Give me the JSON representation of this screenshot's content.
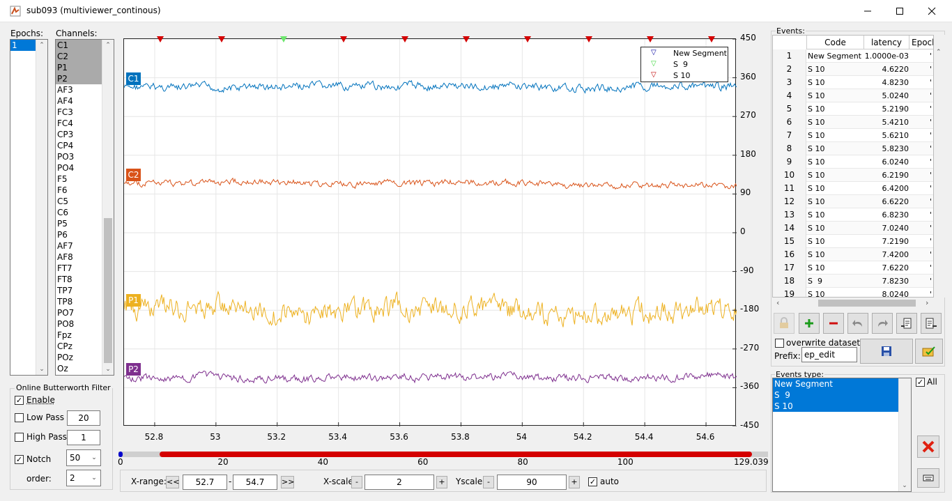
{
  "window": {
    "title": "sub093 (multiviewer_continous)"
  },
  "epochs": {
    "label": "Epochs:",
    "items": [
      "1"
    ],
    "selected": 0
  },
  "channels": {
    "label": "Channels:",
    "items": [
      "C1",
      "C2",
      "P1",
      "P2",
      "AF3",
      "AF4",
      "FC3",
      "FC4",
      "CP3",
      "CP4",
      "PO3",
      "PO4",
      "F5",
      "F6",
      "C5",
      "C6",
      "P5",
      "P6",
      "AF7",
      "AF8",
      "FT7",
      "FT8",
      "TP7",
      "TP8",
      "PO7",
      "PO8",
      "Fpz",
      "CPz",
      "POz",
      "Oz"
    ],
    "selected": [
      "C1",
      "C2",
      "P1",
      "P2"
    ]
  },
  "filter": {
    "group_title": "Online Butterworth Filter",
    "enable_label": "Enable",
    "enable_checked": true,
    "low_pass_label": "Low Pass",
    "low_pass_value": "20",
    "low_pass_checked": false,
    "high_pass_label": "High Pass",
    "high_pass_value": "1",
    "high_pass_checked": false,
    "notch_label": "Notch",
    "notch_value": "50",
    "notch_checked": true,
    "order_label": "order:",
    "order_value": "2"
  },
  "chart_data": {
    "type": "line",
    "xlim": [
      52.7,
      54.7
    ],
    "ylim": [
      -450,
      450
    ],
    "x_ticks": [
      "52.8",
      "53",
      "53.2",
      "53.4",
      "53.6",
      "53.8",
      "54",
      "54.2",
      "54.4",
      "54.6"
    ],
    "y_ticks": [
      "450",
      "360",
      "270",
      "180",
      "90",
      "0",
      "-90",
      "-180",
      "-270",
      "-360",
      "-450"
    ],
    "grid": true,
    "series": [
      {
        "name": "C1",
        "color": "#0072bd",
        "offset": 337,
        "amplitude": 5
      },
      {
        "name": "C2",
        "color": "#d95319",
        "offset": 113,
        "amplitude": 4
      },
      {
        "name": "P1",
        "color": "#edb120",
        "offset": -178,
        "amplitude": 14
      },
      {
        "name": "P2",
        "color": "#7e2f8e",
        "offset": -338,
        "amplitude": 5
      }
    ],
    "event_markers": [
      {
        "t": 52.82,
        "type": "S 10"
      },
      {
        "t": 53.02,
        "type": "S 10"
      },
      {
        "t": 53.223,
        "type": "S  9"
      },
      {
        "t": 53.42,
        "type": "S 10"
      },
      {
        "t": 53.62,
        "type": "S 10"
      },
      {
        "t": 53.82,
        "type": "S 10"
      },
      {
        "t": 54.02,
        "type": "S 10"
      },
      {
        "t": 54.22,
        "type": "S 10"
      },
      {
        "t": 54.42,
        "type": "S 10"
      },
      {
        "t": 54.62,
        "type": "S 10"
      }
    ],
    "legend": {
      "position": "top-right",
      "entries": [
        {
          "label": "New Segment",
          "color": "#0000a0"
        },
        {
          "label": "S  9",
          "color": "#3cd83c"
        },
        {
          "label": "S 10",
          "color": "#c00000"
        }
      ]
    }
  },
  "overview": {
    "ticks": [
      "0",
      "20",
      "40",
      "60",
      "80",
      "100",
      "129.039"
    ],
    "max": 129.039,
    "window_start": 52.7,
    "window_end": 54.7,
    "events_span": [
      4.622,
      125.8
    ]
  },
  "controls": {
    "xrange_label": "X-range:",
    "prev": "<<",
    "next": ">>",
    "xmin": "52.7",
    "xmax": "54.7",
    "dash": "-",
    "xscale_label": "X-scale",
    "xscale_value": "2",
    "yscale_label": "Yscale",
    "yscale_value": "90",
    "minus": "-",
    "plus": "+",
    "auto_label": "auto",
    "auto_checked": true
  },
  "events": {
    "label": "Events:",
    "columns": [
      "Code",
      "latency",
      "Epoch"
    ],
    "rows": [
      [
        "1",
        "New Segment",
        "1.0000e-03"
      ],
      [
        "2",
        "S 10",
        "4.6220"
      ],
      [
        "3",
        "S 10",
        "4.8230"
      ],
      [
        "4",
        "S 10",
        "5.0240"
      ],
      [
        "5",
        "S 10",
        "5.2190"
      ],
      [
        "6",
        "S 10",
        "5.4210"
      ],
      [
        "7",
        "S 10",
        "5.6210"
      ],
      [
        "8",
        "S 10",
        "5.8230"
      ],
      [
        "9",
        "S 10",
        "6.0240"
      ],
      [
        "10",
        "S 10",
        "6.2190"
      ],
      [
        "11",
        "S 10",
        "6.4200"
      ],
      [
        "12",
        "S 10",
        "6.6220"
      ],
      [
        "13",
        "S 10",
        "6.8230"
      ],
      [
        "14",
        "S 10",
        "7.0240"
      ],
      [
        "15",
        "S 10",
        "7.2190"
      ],
      [
        "16",
        "S 10",
        "7.4200"
      ],
      [
        "17",
        "S 10",
        "7.6220"
      ],
      [
        "18",
        "S  9",
        "7.8230"
      ],
      [
        "19",
        "S 10",
        "8.0240"
      ]
    ],
    "epoch_mark": "'",
    "overwrite_label": "overwrite dataset",
    "overwrite_checked": false,
    "prefix_label": "Prefix:",
    "prefix_value": "ep_edit"
  },
  "events_type": {
    "label": "Events type:",
    "items": [
      "New Segment",
      "S  9",
      "S 10"
    ],
    "all_label": "All",
    "all_checked": true
  }
}
